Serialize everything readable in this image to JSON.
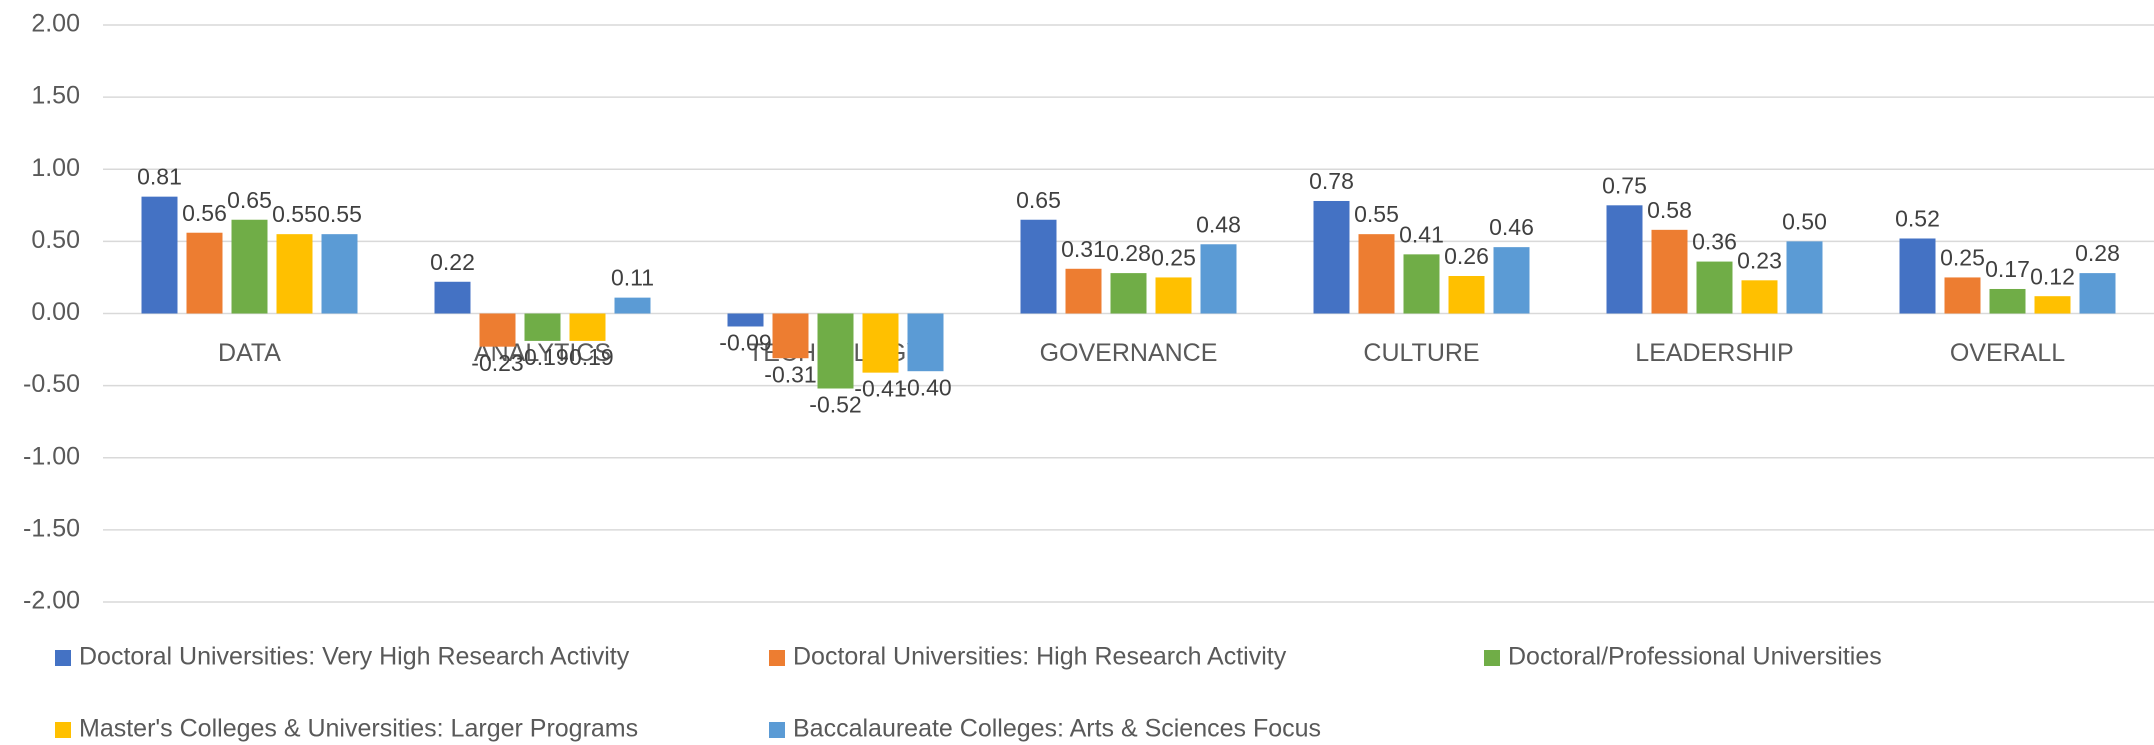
{
  "chart_data": {
    "type": "bar",
    "categories": [
      "DATA",
      "ANALYTICS",
      "TECHNOLOGY",
      "GOVERNANCE",
      "CULTURE",
      "LEADERSHIP",
      "OVERALL"
    ],
    "series": [
      {
        "name": "Doctoral Universities: Very High Research Activity",
        "color": "#4472c4",
        "values": [
          0.81,
          0.22,
          -0.09,
          0.65,
          0.78,
          0.75,
          0.52
        ],
        "value_labels": [
          "0.81",
          "0.22",
          "-0.09",
          "0.65",
          "0.78",
          "0.75",
          "0.52"
        ]
      },
      {
        "name": "Doctoral Universities: High Research Activity",
        "color": "#ed7d31",
        "values": [
          0.56,
          -0.23,
          -0.31,
          0.31,
          0.55,
          0.58,
          0.25
        ],
        "value_labels": [
          "0.56",
          "-0.23",
          "-0.31",
          "0.31",
          "0.55",
          "0.58",
          "0.25"
        ]
      },
      {
        "name": "Doctoral/Professional Universities",
        "color": "#70ad47",
        "values": [
          0.65,
          -0.19,
          -0.52,
          0.28,
          0.41,
          0.36,
          0.17
        ],
        "value_labels": [
          "0.65",
          "-0.19",
          "-0.52",
          "0.28",
          "0.41",
          "0.36",
          "0.17"
        ]
      },
      {
        "name": "Master's Colleges & Universities: Larger Programs",
        "color": "#ffc000",
        "values": [
          0.55,
          -0.19,
          -0.41,
          0.25,
          0.26,
          0.23,
          0.12
        ],
        "value_labels": [
          "0.55",
          "-0.19",
          "-0.41",
          "0.25",
          "0.26",
          "0.23",
          "0.12"
        ]
      },
      {
        "name": "Baccalaureate Colleges: Arts & Sciences Focus",
        "color": "#5b9bd5",
        "values": [
          0.55,
          0.11,
          -0.4,
          0.48,
          0.46,
          0.5,
          0.28
        ],
        "value_labels": [
          "0.55",
          "0.11",
          "-0.40",
          "0.48",
          "0.46",
          "0.50",
          "0.28"
        ]
      }
    ],
    "ylim": [
      -2,
      2
    ],
    "yticks": [
      {
        "value": -2,
        "label": "-2.00"
      },
      {
        "value": -1.5,
        "label": "-1.50"
      },
      {
        "value": -1,
        "label": "-1.00"
      },
      {
        "value": -0.5,
        "label": "-0.50"
      },
      {
        "value": 0,
        "label": "0.00"
      },
      {
        "value": 0.5,
        "label": "0.50"
      },
      {
        "value": 1,
        "label": "1.00"
      },
      {
        "value": 1.5,
        "label": "1.50"
      },
      {
        "value": 2,
        "label": "2.00"
      }
    ],
    "grid": true,
    "legend": "bottom"
  }
}
